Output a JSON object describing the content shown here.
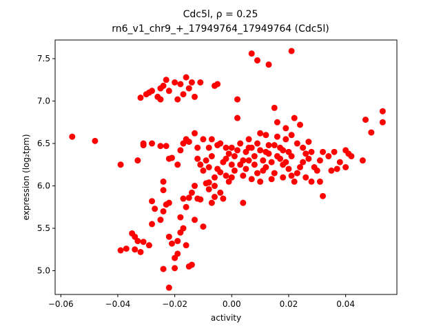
{
  "chart_data": {
    "type": "scatter",
    "title_line1": "Cdc5l, ρ = 0.25",
    "title_line2": "rn6_v1_chr9_+_17949764_17949764 (Cdc5l)",
    "xlabel": "activity",
    "ylabel": "expression (log₂tpm)",
    "xlim": [
      -0.062,
      0.058
    ],
    "ylim": [
      4.72,
      7.72
    ],
    "xticks": [
      -0.06,
      -0.04,
      -0.02,
      0.0,
      0.02,
      0.04
    ],
    "xtick_labels": [
      "−0.06",
      "−0.04",
      "−0.02",
      "0.00",
      "0.02",
      "0.04"
    ],
    "yticks": [
      5.0,
      5.5,
      6.0,
      6.5,
      7.0,
      7.5
    ],
    "ytick_labels": [
      "5.0",
      "5.5",
      "6.0",
      "6.5",
      "7.0",
      "7.5"
    ],
    "marker_color": "#ff0000",
    "grid": false,
    "points": [
      [
        -0.056,
        6.58
      ],
      [
        -0.048,
        6.53
      ],
      [
        -0.039,
        6.25
      ],
      [
        -0.033,
        6.3
      ],
      [
        -0.031,
        6.48
      ],
      [
        -0.031,
        6.5
      ],
      [
        -0.028,
        6.5
      ],
      [
        -0.025,
        6.47
      ],
      [
        -0.023,
        6.47
      ],
      [
        -0.022,
        6.32
      ],
      [
        -0.021,
        6.33
      ],
      [
        -0.019,
        6.25
      ],
      [
        -0.018,
        6.42
      ],
      [
        -0.017,
        6.5
      ],
      [
        -0.016,
        6.55
      ],
      [
        -0.015,
        6.52
      ],
      [
        -0.013,
        6.62
      ],
      [
        -0.012,
        6.45
      ],
      [
        -0.01,
        6.55
      ],
      [
        -0.008,
        6.45
      ],
      [
        -0.007,
        6.55
      ],
      [
        -0.005,
        6.48
      ],
      [
        -0.004,
        6.5
      ],
      [
        -0.002,
        6.45
      ],
      [
        -0.032,
        7.04
      ],
      [
        -0.03,
        7.08
      ],
      [
        -0.029,
        7.1
      ],
      [
        -0.028,
        7.12
      ],
      [
        -0.026,
        7.05
      ],
      [
        -0.025,
        7.02
      ],
      [
        -0.025,
        7.15
      ],
      [
        -0.024,
        7.18
      ],
      [
        -0.023,
        7.25
      ],
      [
        -0.022,
        7.12
      ],
      [
        -0.02,
        7.22
      ],
      [
        -0.019,
        7.02
      ],
      [
        -0.018,
        7.2
      ],
      [
        -0.017,
        7.08
      ],
      [
        -0.016,
        7.28
      ],
      [
        -0.015,
        7.15
      ],
      [
        -0.014,
        7.22
      ],
      [
        -0.013,
        7.05
      ],
      [
        -0.011,
        7.22
      ],
      [
        -0.006,
        7.18
      ],
      [
        -0.005,
        7.2
      ],
      [
        0.002,
        7.02
      ],
      [
        0.007,
        7.56
      ],
      [
        0.009,
        7.48
      ],
      [
        0.013,
        7.43
      ],
      [
        0.021,
        7.59
      ],
      [
        -0.035,
        5.44
      ],
      [
        -0.034,
        5.4
      ],
      [
        -0.033,
        5.35
      ],
      [
        -0.034,
        5.25
      ],
      [
        -0.032,
        5.22
      ],
      [
        -0.031,
        5.34
      ],
      [
        -0.039,
        5.24
      ],
      [
        -0.037,
        5.26
      ],
      [
        -0.029,
        5.3
      ],
      [
        -0.028,
        5.55
      ],
      [
        -0.027,
        5.73
      ],
      [
        -0.028,
        5.82
      ],
      [
        -0.025,
        5.6
      ],
      [
        -0.024,
        5.7
      ],
      [
        -0.023,
        5.78
      ],
      [
        -0.022,
        5.8
      ],
      [
        -0.024,
        5.95
      ],
      [
        -0.022,
        5.4
      ],
      [
        -0.021,
        5.32
      ],
      [
        -0.02,
        5.15
      ],
      [
        -0.02,
        5.03
      ],
      [
        -0.019,
        5.35
      ],
      [
        -0.018,
        5.45
      ],
      [
        -0.017,
        5.5
      ],
      [
        -0.019,
        5.2
      ],
      [
        -0.016,
        5.3
      ],
      [
        -0.015,
        5.05
      ],
      [
        -0.014,
        5.07
      ],
      [
        -0.016,
        5.75
      ],
      [
        -0.015,
        5.86
      ],
      [
        -0.017,
        5.85
      ],
      [
        -0.014,
        5.92
      ],
      [
        -0.012,
        5.85
      ],
      [
        -0.018,
        5.63
      ],
      [
        -0.024,
        5.02
      ],
      [
        -0.022,
        4.8
      ],
      [
        -0.013,
        5.6
      ],
      [
        -0.011,
        5.84
      ],
      [
        -0.01,
        5.52
      ],
      [
        -0.013,
        6.0
      ],
      [
        -0.009,
        6.03
      ],
      [
        -0.008,
        5.96
      ],
      [
        -0.008,
        6.04
      ],
      [
        -0.007,
        5.8
      ],
      [
        -0.006,
        5.87
      ],
      [
        -0.004,
        5.92
      ],
      [
        -0.003,
        5.85
      ],
      [
        -0.024,
        6.05
      ],
      [
        -0.011,
        6.25
      ],
      [
        -0.01,
        6.18
      ],
      [
        -0.012,
        6.32
      ],
      [
        -0.009,
        6.3
      ],
      [
        -0.008,
        6.22
      ],
      [
        -0.007,
        6.35
      ],
      [
        -0.006,
        6.1
      ],
      [
        -0.005,
        6.2
      ],
      [
        -0.004,
        6.16
      ],
      [
        -0.003,
        6.28
      ],
      [
        -0.002,
        6.12
      ],
      [
        -0.001,
        6.05
      ],
      [
        0.0,
        6.1
      ],
      [
        0.001,
        6.18
      ],
      [
        0.001,
        6.35
      ],
      [
        0.002,
        6.42
      ],
      [
        0.003,
        6.5
      ],
      [
        0.002,
        6.8
      ],
      [
        0.004,
        6.3
      ],
      [
        0.005,
        6.2
      ],
      [
        0.005,
        6.4
      ],
      [
        0.006,
        6.55
      ],
      [
        0.007,
        6.45
      ],
      [
        0.008,
        6.35
      ],
      [
        0.008,
        6.25
      ],
      [
        0.009,
        6.15
      ],
      [
        0.01,
        6.42
      ],
      [
        0.01,
        6.05
      ],
      [
        0.011,
        6.3
      ],
      [
        0.012,
        6.6
      ],
      [
        0.012,
        6.22
      ],
      [
        0.013,
        6.48
      ],
      [
        0.013,
        6.38
      ],
      [
        0.014,
        6.28
      ],
      [
        0.015,
        6.15
      ],
      [
        0.015,
        6.92
      ],
      [
        0.016,
        6.75
      ],
      [
        0.016,
        6.58
      ],
      [
        0.017,
        6.45
      ],
      [
        0.017,
        6.32
      ],
      [
        0.018,
        6.25
      ],
      [
        0.018,
        6.1
      ],
      [
        0.019,
        6.68
      ],
      [
        0.019,
        6.55
      ],
      [
        0.02,
        6.4
      ],
      [
        0.02,
        6.2
      ],
      [
        0.021,
        6.6
      ],
      [
        0.021,
        6.35
      ],
      [
        0.022,
        6.8
      ],
      [
        0.022,
        6.05
      ],
      [
        0.023,
        6.5
      ],
      [
        0.023,
        6.15
      ],
      [
        0.024,
        6.72
      ],
      [
        0.025,
        6.45
      ],
      [
        0.025,
        6.28
      ],
      [
        0.026,
        6.1
      ],
      [
        0.027,
        6.32
      ],
      [
        0.027,
        6.52
      ],
      [
        0.028,
        6.4
      ],
      [
        0.029,
        6.22
      ],
      [
        0.03,
        6.18
      ],
      [
        0.031,
        6.3
      ],
      [
        0.031,
        6.05
      ],
      [
        0.032,
        6.4
      ],
      [
        0.032,
        5.88
      ],
      [
        0.034,
        6.35
      ],
      [
        0.035,
        6.18
      ],
      [
        0.036,
        6.4
      ],
      [
        0.037,
        6.2
      ],
      [
        0.038,
        6.28
      ],
      [
        0.04,
        6.42
      ],
      [
        0.041,
        6.38
      ],
      [
        0.042,
        6.35
      ],
      [
        0.04,
        6.22
      ],
      [
        0.046,
        6.3
      ],
      [
        0.047,
        6.78
      ],
      [
        0.049,
        6.63
      ],
      [
        0.053,
        6.88
      ],
      [
        0.053,
        6.75
      ],
      [
        -0.002,
        6.32
      ],
      [
        -0.001,
        6.38
      ],
      [
        0.0,
        6.45
      ],
      [
        0.003,
        6.25
      ],
      [
        0.004,
        6.12
      ],
      [
        0.006,
        6.3
      ],
      [
        0.007,
        6.08
      ],
      [
        0.009,
        6.5
      ],
      [
        0.011,
        6.18
      ],
      [
        0.014,
        6.08
      ],
      [
        0.016,
        6.35
      ],
      [
        0.019,
        6.28
      ],
      [
        0.021,
        6.12
      ],
      [
        0.024,
        6.22
      ],
      [
        0.026,
        6.38
      ],
      [
        0.028,
        6.05
      ],
      [
        0.004,
        5.8
      ],
      [
        0.006,
        6.45
      ],
      [
        0.01,
        6.62
      ],
      [
        0.012,
        6.4
      ],
      [
        0.015,
        6.48
      ],
      [
        0.018,
        6.42
      ],
      [
        -0.006,
        6.0
      ],
      [
        0.0,
        6.25
      ]
    ]
  }
}
